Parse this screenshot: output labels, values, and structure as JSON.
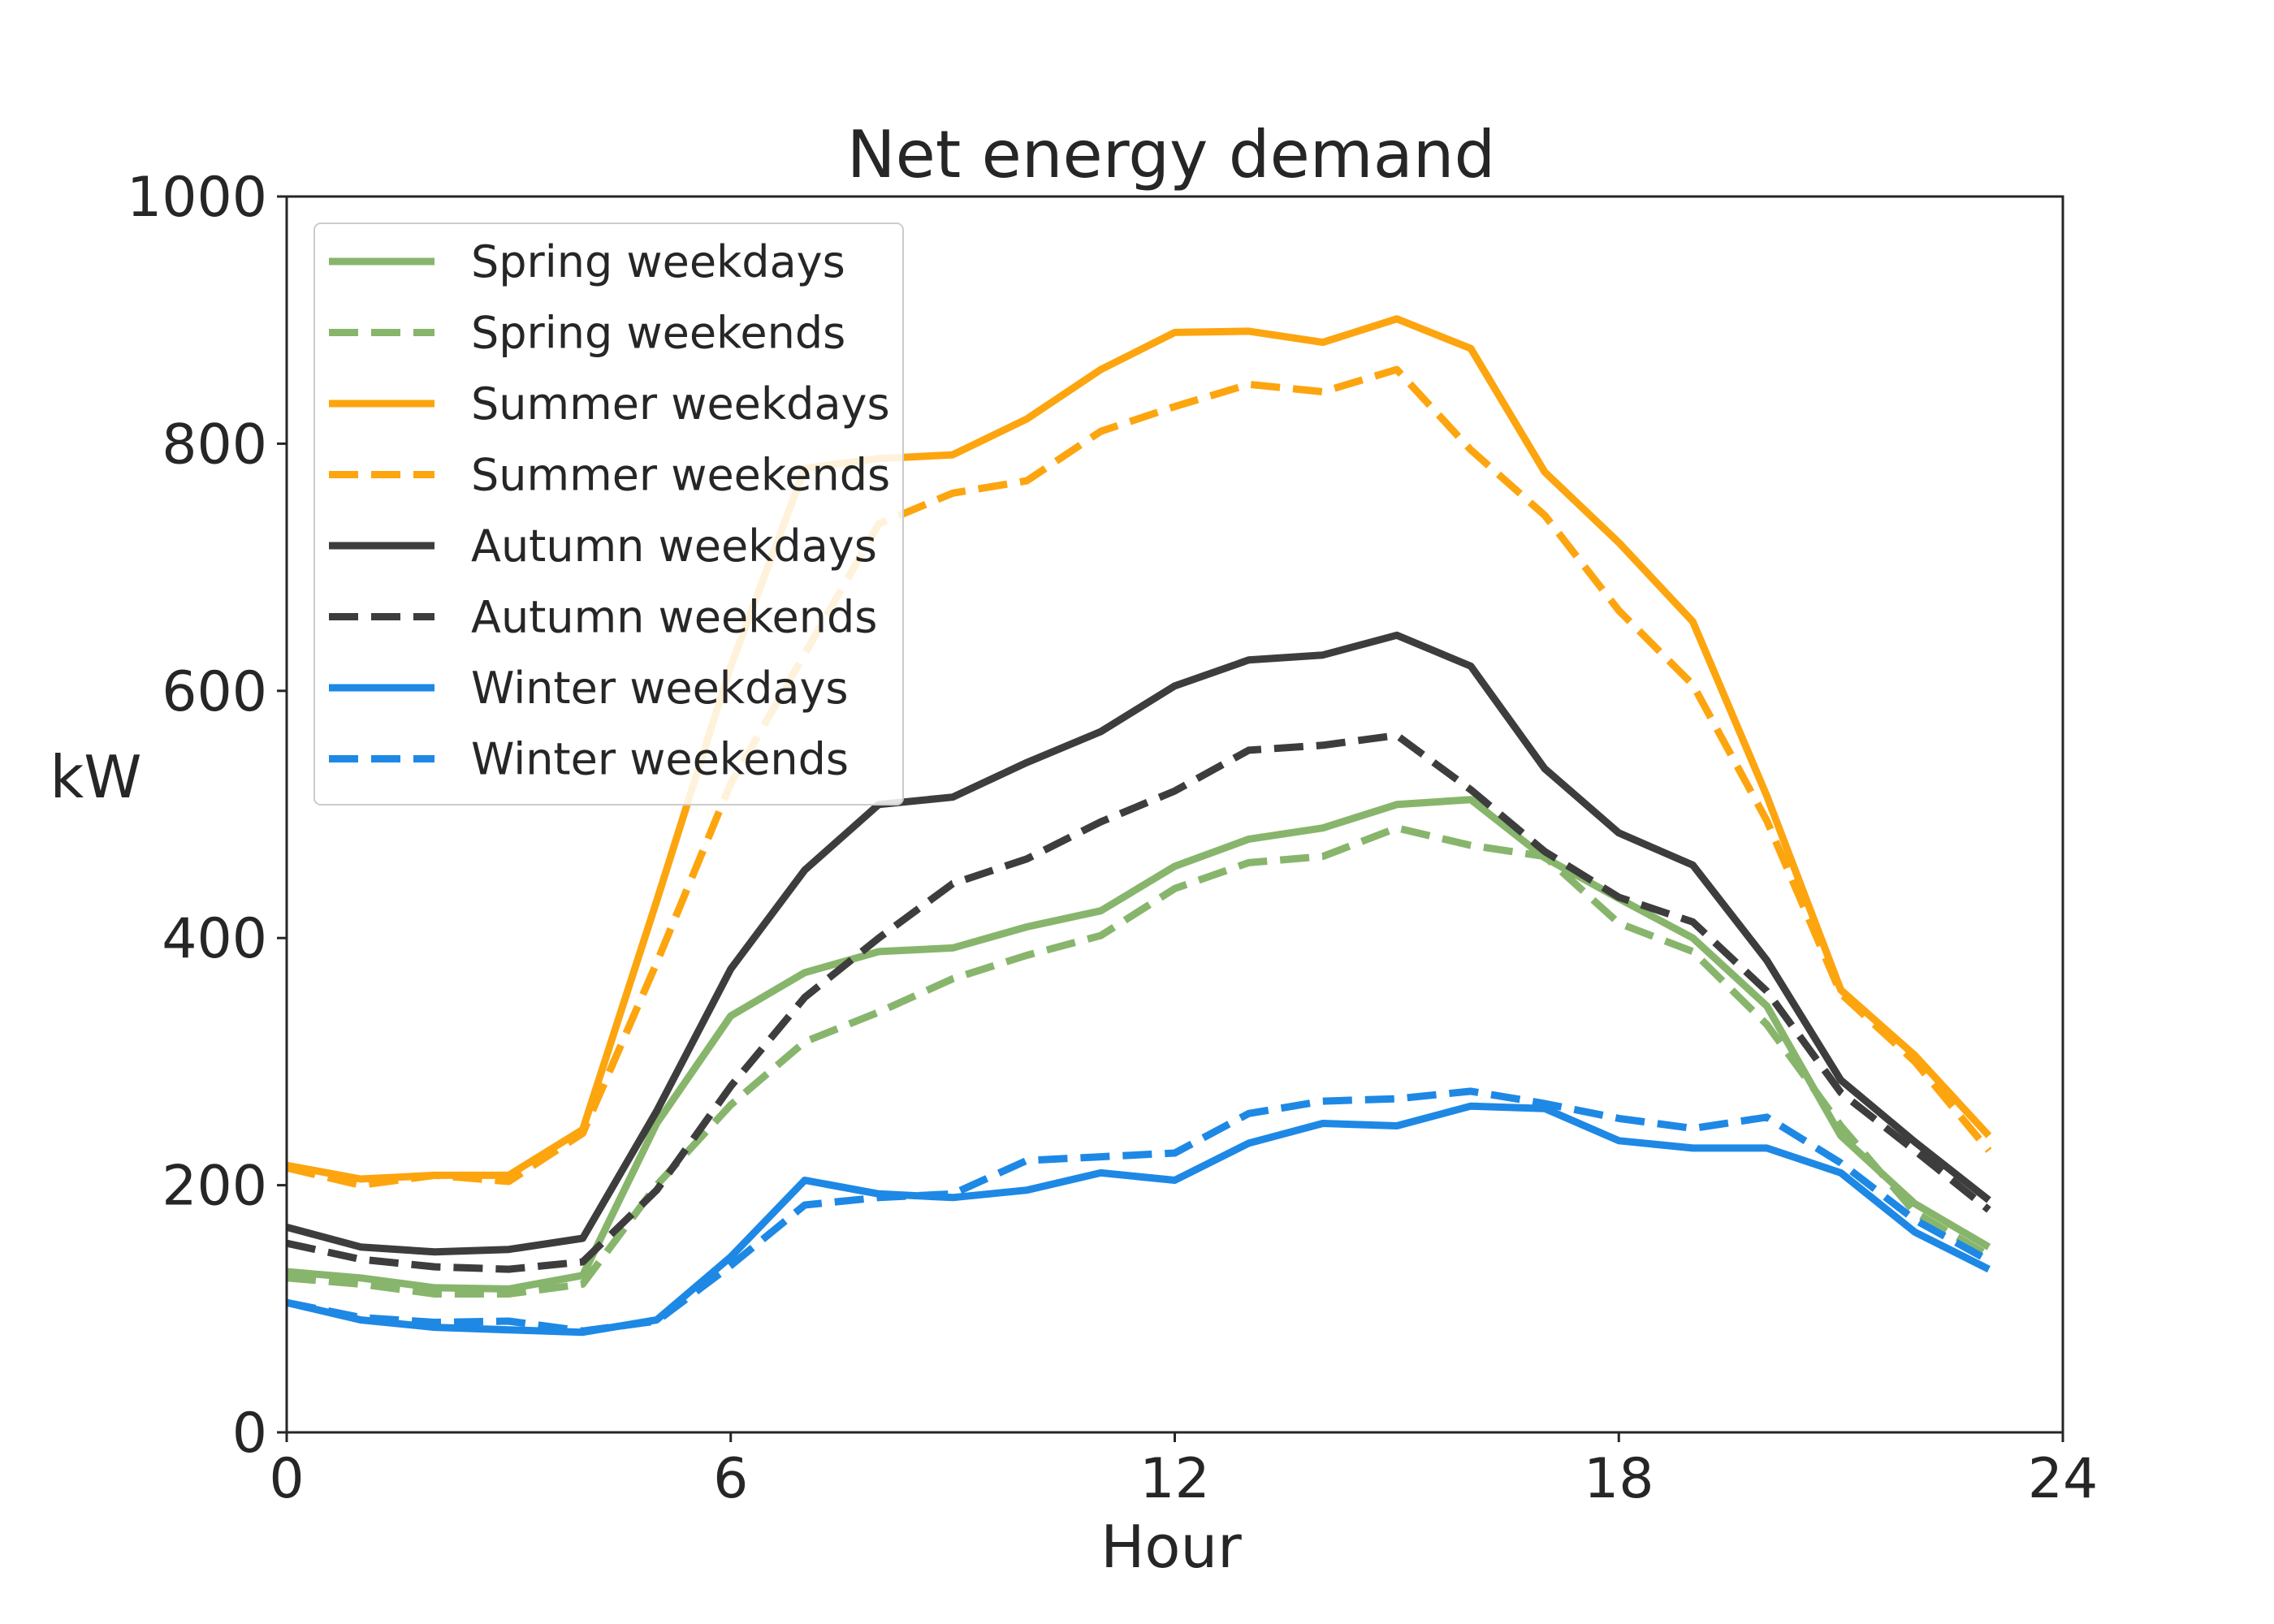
{
  "chart_data": {
    "type": "line",
    "title": "Net energy demand",
    "xlabel": "Hour",
    "ylabel": "kW",
    "xlim": [
      0,
      24
    ],
    "ylim": [
      0,
      1000
    ],
    "xticks": [
      0,
      6,
      12,
      18,
      24
    ],
    "yticks": [
      0,
      200,
      400,
      600,
      800,
      1000
    ],
    "grid": false,
    "legend_position": "top-left",
    "x": [
      0,
      1,
      2,
      3,
      4,
      5,
      6,
      7,
      8,
      9,
      10,
      11,
      12,
      13,
      14,
      15,
      16,
      17,
      18,
      19,
      20,
      21,
      22,
      23
    ],
    "series": [
      {
        "name": "Spring weekdays",
        "color": "#88b56c",
        "dash": "solid",
        "values": [
          130,
          125,
          117,
          116,
          127,
          250,
          337,
          372,
          389,
          392,
          409,
          422,
          458,
          480,
          489,
          508,
          512,
          465,
          432,
          400,
          345,
          240,
          185,
          150
        ]
      },
      {
        "name": "Spring weekends",
        "color": "#88b56c",
        "dash": "dashed",
        "values": [
          125,
          120,
          112,
          112,
          120,
          200,
          265,
          316,
          340,
          367,
          386,
          402,
          440,
          461,
          466,
          489,
          475,
          466,
          412,
          389,
          330,
          248,
          178,
          143
        ]
      },
      {
        "name": "Summer weekdays",
        "color": "#fda50f",
        "dash": "solid",
        "values": [
          216,
          205,
          208,
          208,
          245,
          430,
          620,
          780,
          788,
          791,
          820,
          860,
          890,
          891,
          882,
          901,
          877,
          777,
          720,
          656,
          515,
          358,
          305,
          240
        ]
      },
      {
        "name": "Summer weekends",
        "color": "#fda50f",
        "dash": "dashed",
        "values": [
          214,
          200,
          208,
          203,
          242,
          380,
          525,
          630,
          735,
          760,
          770,
          810,
          830,
          848,
          842,
          860,
          795,
          742,
          665,
          605,
          495,
          355,
          300,
          228
        ]
      },
      {
        "name": "Autumn weekdays",
        "color": "#3d3d3d",
        "dash": "solid",
        "values": [
          166,
          150,
          146,
          148,
          157,
          260,
          375,
          455,
          508,
          514,
          542,
          567,
          604,
          625,
          629,
          645,
          620,
          537,
          485,
          459,
          382,
          285,
          235,
          188
        ]
      },
      {
        "name": "Autumn weekends",
        "color": "#3d3d3d",
        "dash": "dashed",
        "values": [
          153,
          140,
          134,
          132,
          138,
          196,
          280,
          352,
          400,
          444,
          464,
          494,
          519,
          552,
          556,
          564,
          520,
          470,
          433,
          413,
          357,
          275,
          228,
          180
        ]
      },
      {
        "name": "Winter weekdays",
        "color": "#1e88e5",
        "dash": "solid",
        "values": [
          105,
          91,
          85,
          83,
          81,
          91,
          142,
          204,
          193,
          190,
          196,
          210,
          204,
          234,
          250,
          248,
          264,
          262,
          236,
          230,
          230,
          210,
          162,
          132
        ]
      },
      {
        "name": "Winter weekends",
        "color": "#1e88e5",
        "dash": "dashed",
        "values": [
          105,
          93,
          89,
          90,
          82,
          90,
          135,
          184,
          190,
          193,
          220,
          223,
          226,
          258,
          268,
          270,
          276,
          266,
          254,
          246,
          255,
          218,
          172,
          139
        ]
      }
    ]
  }
}
